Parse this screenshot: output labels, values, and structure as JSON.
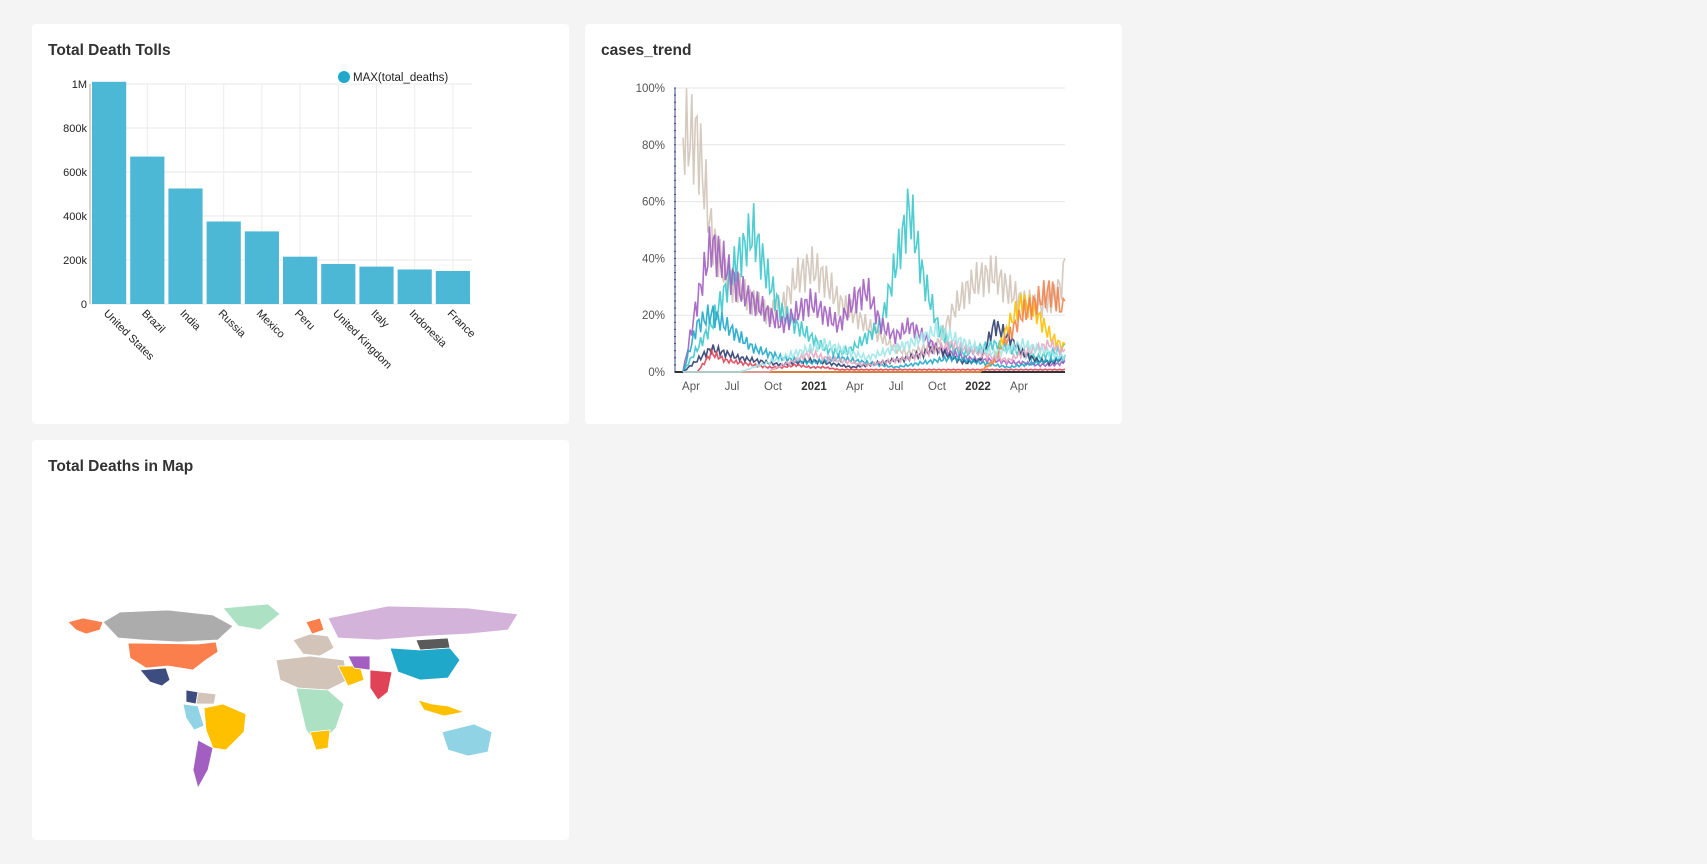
{
  "dashboard": {
    "charts": [
      {
        "title": "Total Death Tolls"
      },
      {
        "title": "cases_trend"
      },
      {
        "title": "Total Deaths in Map"
      }
    ]
  },
  "bar_chart": {
    "legend_label": "MAX(total_deaths)",
    "color": "#4DB8D6",
    "legend_color": "#1FA8C9",
    "y_ticks": [
      "0",
      "200k",
      "400k",
      "600k",
      "800k",
      "1M"
    ]
  },
  "line_chart": {
    "y_ticks": [
      "0%",
      "20%",
      "40%",
      "60%",
      "80%",
      "100%"
    ],
    "x_ticks": [
      {
        "label": "Apr",
        "bold": false
      },
      {
        "label": "Jul",
        "bold": false
      },
      {
        "label": "Oct",
        "bold": false
      },
      {
        "label": "2021",
        "bold": true
      },
      {
        "label": "Apr",
        "bold": false
      },
      {
        "label": "Jul",
        "bold": false
      },
      {
        "label": "Oct",
        "bold": false
      },
      {
        "label": "2022",
        "bold": true
      },
      {
        "label": "Apr",
        "bold": false
      }
    ],
    "colors": [
      "#D2C4B8",
      "#3CC8CB",
      "#A25FC1",
      "#2F3E6E",
      "#1FA8C9",
      "#E04355",
      "#FFC000",
      "#F2824E",
      "#E4A9C2",
      "#9DE6E8"
    ]
  },
  "map": {
    "colors": {
      "north_america_canada": "#ACACAC",
      "usa": "#FA7F4C",
      "alaska": "#FA7F4C",
      "mexico": "#3D4D80",
      "greenland": "#ACE1C4",
      "brazil": "#FFC000",
      "argentina": "#A25FC1",
      "russia": "#D4B3DB",
      "china": "#1FA8C9",
      "india": "#E04355",
      "australia": "#8FD3E4",
      "africa_misc": "#D2C4B8",
      "mongolia": "#5A5A5A",
      "indonesia": "#FFC000",
      "saudi": "#FFC000"
    }
  },
  "chart_data": [
    {
      "type": "bar",
      "title": "Total Death Tolls",
      "categories": [
        "United States",
        "Brazil",
        "India",
        "Russia",
        "Mexico",
        "Peru",
        "United Kingdom",
        "Italy",
        "Indonesia",
        "France"
      ],
      "series": [
        {
          "name": "MAX(total_deaths)",
          "values": [
            1010000,
            670000,
            525000,
            375000,
            330000,
            215000,
            182000,
            170000,
            157000,
            150000
          ]
        }
      ],
      "ylim": [
        0,
        1000000
      ],
      "legend_position": "top-right",
      "grid": true
    },
    {
      "type": "line",
      "title": "cases_trend",
      "x": [
        "2020-03",
        "2020-04",
        "2020-05",
        "2020-06",
        "2020-07",
        "2020-08",
        "2020-09",
        "2020-10",
        "2020-11",
        "2020-12",
        "2021-01",
        "2021-02",
        "2021-03",
        "2021-04",
        "2021-05",
        "2021-06",
        "2021-07",
        "2021-08",
        "2021-09",
        "2021-10",
        "2021-11",
        "2021-12",
        "2022-01",
        "2022-02",
        "2022-03",
        "2022-04",
        "2022-05",
        "2022-06"
      ],
      "series": [
        {
          "values": [
            100,
            100,
            60,
            40,
            35,
            30,
            25,
            28,
            40,
            45,
            40,
            30,
            25,
            20,
            15,
            10,
            8,
            10,
            12,
            25,
            35,
            40,
            42,
            35,
            30,
            28,
            30,
            40
          ]
        },
        {
          "values": [
            0,
            10,
            20,
            35,
            50,
            60,
            40,
            25,
            20,
            15,
            10,
            8,
            10,
            15,
            20,
            45,
            70,
            40,
            20,
            10,
            8,
            10,
            12,
            10,
            8,
            6,
            8,
            10
          ]
        },
        {
          "values": [
            0,
            30,
            55,
            45,
            35,
            30,
            25,
            20,
            25,
            30,
            25,
            20,
            30,
            35,
            20,
            15,
            20,
            15,
            10,
            8,
            6,
            5,
            5,
            4,
            4,
            3,
            3,
            4
          ]
        },
        {
          "values": [
            0,
            5,
            10,
            8,
            6,
            5,
            4,
            3,
            4,
            5,
            4,
            3,
            2,
            3,
            4,
            5,
            6,
            8,
            10,
            6,
            4,
            5,
            20,
            15,
            8,
            5,
            4,
            6
          ]
        },
        {
          "values": [
            0,
            20,
            25,
            20,
            15,
            10,
            8,
            6,
            5,
            4,
            5,
            6,
            5,
            4,
            3,
            2,
            3,
            4,
            5,
            6,
            5,
            4,
            3,
            2,
            3,
            4,
            5,
            6
          ]
        },
        {
          "values": [
            0,
            0,
            8,
            5,
            4,
            3,
            2,
            2,
            3,
            2,
            2,
            1,
            1,
            1,
            1,
            1,
            1,
            1,
            1,
            1,
            1,
            1,
            1,
            1,
            1,
            1,
            1,
            1
          ]
        },
        {
          "values": [
            0,
            0,
            0,
            0,
            0,
            0,
            0,
            0,
            0,
            0,
            0,
            0,
            0,
            0,
            0,
            0,
            0,
            0,
            0,
            0,
            0,
            0,
            5,
            20,
            30,
            25,
            15,
            10
          ]
        },
        {
          "values": [
            0,
            0,
            0,
            0,
            0,
            0,
            0,
            0,
            0,
            0,
            0,
            0,
            0,
            0,
            0,
            0,
            0,
            0,
            0,
            0,
            0,
            0,
            5,
            15,
            25,
            30,
            35,
            25
          ]
        },
        {
          "values": [
            0,
            0,
            0,
            0,
            0,
            0,
            0,
            3,
            5,
            8,
            6,
            5,
            4,
            3,
            4,
            5,
            6,
            8,
            10,
            12,
            10,
            8,
            6,
            5,
            8,
            10,
            12,
            8
          ]
        },
        {
          "values": [
            0,
            0,
            0,
            0,
            0,
            2,
            4,
            6,
            8,
            10,
            12,
            10,
            8,
            6,
            8,
            10,
            12,
            15,
            18,
            15,
            12,
            10,
            8,
            10,
            12,
            10,
            8,
            6
          ]
        }
      ],
      "ylim": [
        0,
        100
      ],
      "yunit": "%",
      "grid": true
    }
  ]
}
